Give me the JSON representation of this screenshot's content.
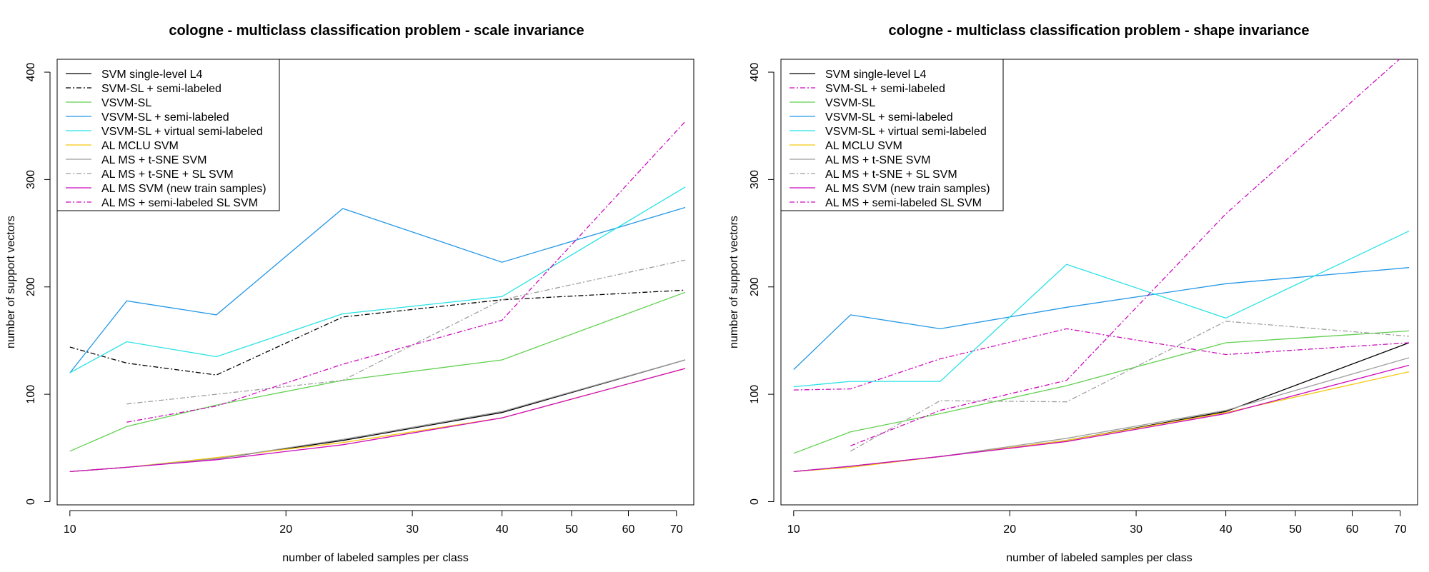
{
  "chart_data": [
    {
      "type": "line",
      "title": "cologne - multiclass classification problem - scale invariance",
      "xlabel": "number of labeled samples per class",
      "ylabel": "number of support vectors",
      "x_scale": "log",
      "xlim": [
        9.6,
        74
      ],
      "ylim": [
        -3,
        412
      ],
      "xticks": [
        10,
        20,
        30,
        40,
        50,
        60,
        70
      ],
      "yticks": [
        0,
        100,
        200,
        300,
        400
      ],
      "grid": false,
      "legend_position": "top-left",
      "series": [
        {
          "name": "SVM single-level L4",
          "color": "#000000",
          "dash": "solid",
          "x": [
            10,
            12,
            16,
            24,
            40,
            72
          ],
          "y": [
            28,
            32,
            40,
            57,
            83,
            132
          ]
        },
        {
          "name": "SVM-SL + semi-labeled",
          "color": "#000000",
          "dash": "dashdot",
          "x": [
            10,
            12,
            16,
            24,
            40,
            72
          ],
          "y": [
            144,
            129,
            118,
            172,
            188,
            197
          ]
        },
        {
          "name": "VSVM-SL",
          "color": "#61D04F",
          "dash": "solid",
          "x": [
            10,
            12,
            16,
            24,
            40,
            72
          ],
          "y": [
            47,
            70,
            90,
            113,
            132,
            195
          ]
        },
        {
          "name": "VSVM-SL + semi-labeled",
          "color": "#2297E6",
          "dash": "solid",
          "x": [
            10,
            12,
            16,
            24,
            40,
            72
          ],
          "y": [
            120,
            187,
            174,
            273,
            223,
            274
          ]
        },
        {
          "name": "VSVM-SL + virtual semi-labeled",
          "color": "#28E2E5",
          "dash": "solid",
          "x": [
            10,
            12,
            16,
            24,
            40,
            72
          ],
          "y": [
            120,
            149,
            135,
            175,
            191,
            293
          ]
        },
        {
          "name": "AL MCLU SVM",
          "color": "#F5C710",
          "dash": "solid",
          "x": [
            10,
            12,
            16,
            24,
            40,
            72
          ],
          "y": [
            28,
            32,
            41,
            55,
            78,
            124
          ]
        },
        {
          "name": "AL MS + t-SNE SVM",
          "color": "#9E9E9E",
          "dash": "solid",
          "x": [
            10,
            12,
            16,
            24,
            40,
            72
          ],
          "y": [
            28,
            32,
            40,
            58,
            84,
            132
          ]
        },
        {
          "name": "AL MS + t-SNE + SL SVM",
          "color": "#9E9E9E",
          "dash": "dashdot",
          "x": [
            12,
            16,
            24,
            40,
            72
          ],
          "y": [
            91,
            100,
            113,
            188,
            225
          ]
        },
        {
          "name": "AL MS SVM (new train samples)",
          "color": "#CD0BBC",
          "dash": "solid",
          "x": [
            10,
            12,
            16,
            24,
            40,
            72
          ],
          "y": [
            28,
            32,
            39,
            53,
            78,
            124
          ]
        },
        {
          "name": "AL MS + semi-labeled SL SVM",
          "color": "#CD0BBC",
          "dash": "dashdot",
          "x": [
            12,
            16,
            24,
            40,
            72
          ],
          "y": [
            74,
            89,
            128,
            169,
            354
          ]
        }
      ]
    },
    {
      "type": "line",
      "title": "cologne - multiclass classification problem - shape invariance",
      "xlabel": "number of labeled samples per class",
      "ylabel": "number of support vectors",
      "x_scale": "log",
      "xlim": [
        9.6,
        74
      ],
      "ylim": [
        -3,
        412
      ],
      "xticks": [
        10,
        20,
        30,
        40,
        50,
        60,
        70
      ],
      "yticks": [
        0,
        100,
        200,
        300,
        400
      ],
      "grid": false,
      "legend_position": "top-left",
      "series": [
        {
          "name": "SVM single-level L4",
          "color": "#000000",
          "dash": "solid",
          "x": [
            10,
            12,
            16,
            24,
            40,
            72
          ],
          "y": [
            28,
            33,
            42,
            57,
            84,
            148
          ]
        },
        {
          "name": "SVM-SL + semi-labeled",
          "color": "#CD0BBC",
          "dash": "dashdot",
          "x": [
            10,
            12,
            16,
            24,
            40,
            72
          ],
          "y": [
            104,
            105,
            133,
            161,
            137,
            148
          ]
        },
        {
          "name": "VSVM-SL",
          "color": "#61D04F",
          "dash": "solid",
          "x": [
            10,
            12,
            16,
            24,
            40,
            72
          ],
          "y": [
            45,
            65,
            82,
            108,
            148,
            159
          ]
        },
        {
          "name": "VSVM-SL + semi-labeled",
          "color": "#2297E6",
          "dash": "solid",
          "x": [
            10,
            12,
            16,
            24,
            40,
            72
          ],
          "y": [
            123,
            174,
            161,
            181,
            203,
            218
          ]
        },
        {
          "name": "VSVM-SL + virtual semi-labeled",
          "color": "#28E2E5",
          "dash": "solid",
          "x": [
            10,
            12,
            16,
            24,
            40,
            72
          ],
          "y": [
            107,
            112,
            112,
            221,
            171,
            252
          ]
        },
        {
          "name": "AL MCLU SVM",
          "color": "#F5C710",
          "dash": "solid",
          "x": [
            10,
            12,
            16,
            24,
            40,
            72
          ],
          "y": [
            28,
            32,
            42,
            57,
            83,
            121
          ]
        },
        {
          "name": "AL MS + t-SNE SVM",
          "color": "#9E9E9E",
          "dash": "solid",
          "x": [
            10,
            12,
            16,
            24,
            40,
            72
          ],
          "y": [
            28,
            33,
            42,
            59,
            85,
            134
          ]
        },
        {
          "name": "AL MS + t-SNE + SL SVM",
          "color": "#9E9E9E",
          "dash": "dashdot",
          "x": [
            12,
            16,
            24,
            40,
            72
          ],
          "y": [
            47,
            94,
            93,
            168,
            154
          ]
        },
        {
          "name": "AL MS SVM (new train samples)",
          "color": "#CD0BBC",
          "dash": "solid",
          "x": [
            10,
            12,
            16,
            24,
            40,
            72
          ],
          "y": [
            28,
            33,
            42,
            56,
            82,
            127
          ]
        },
        {
          "name": "AL MS + semi-labeled SL SVM",
          "color": "#CD0BBC",
          "dash": "dashdot",
          "x": [
            12,
            16,
            24,
            40,
            72
          ],
          "y": [
            52,
            85,
            113,
            268,
            420
          ]
        }
      ]
    }
  ]
}
